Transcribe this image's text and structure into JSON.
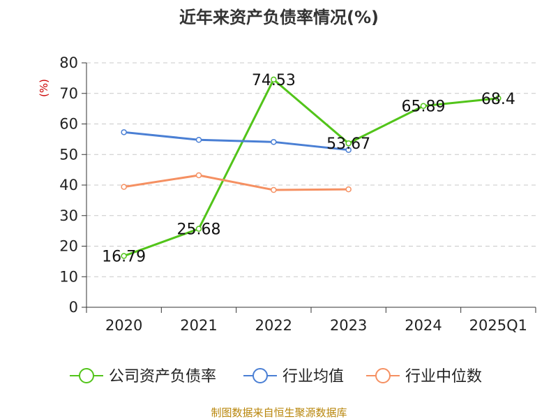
{
  "chart_data": {
    "type": "line",
    "title": "近年来资产负债率情况(%)",
    "ylabel": "(%)",
    "xlabel": "",
    "categories": [
      "2020",
      "2021",
      "2022",
      "2023",
      "2024",
      "2025Q1"
    ],
    "ylim": [
      0,
      80
    ],
    "yticks": [
      0,
      10,
      20,
      30,
      40,
      50,
      60,
      70,
      80
    ],
    "grid": true,
    "legend_position": "bottom",
    "series": [
      {
        "name": "公司资产负债率",
        "color": "#52c41a",
        "values": [
          16.79,
          25.68,
          74.53,
          53.67,
          65.89,
          68.4
        ],
        "labels": [
          "16.79",
          "25.68",
          "74.53",
          "53.67",
          "65.89",
          "68.4"
        ]
      },
      {
        "name": "行业均值",
        "color": "#4a7fd4",
        "values": [
          57.3,
          54.8,
          54.1,
          51.5,
          null,
          null
        ]
      },
      {
        "name": "行业中位数",
        "color": "#f59062",
        "values": [
          39.4,
          43.2,
          38.4,
          38.6,
          null,
          null
        ]
      }
    ]
  },
  "source": "制图数据来自恒生聚源数据库"
}
